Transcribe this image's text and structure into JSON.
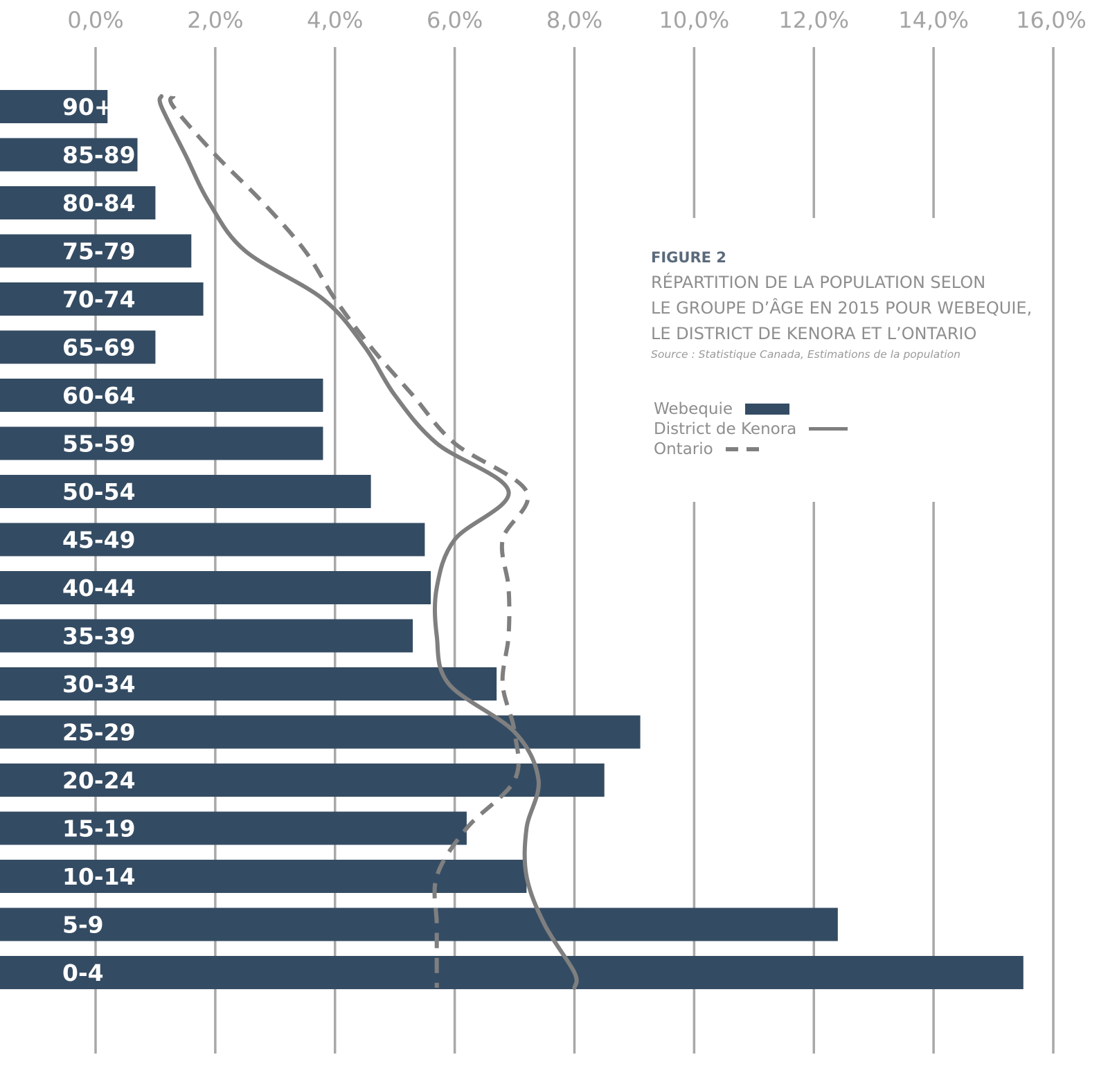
{
  "chart_data": {
    "type": "bar",
    "orientation": "horizontal",
    "figure_label": "FIGURE 2",
    "title": "RÉPARTITION DE LA POPULATION SELON LE GROUPE D’ÂGE EN 2015 POUR WEBEQUIE, LE DISTRICT DE KENORA ET L’ONTARIO",
    "title_lines": [
      "RÉPARTITION DE LA POPULATION SELON",
      "LE GROUPE D’ÂGE EN 2015 POUR WEBEQUIE,",
      "LE DISTRICT DE KENORA ET L’ONTARIO"
    ],
    "source": "Source : Statistique Canada, Estimations de la population",
    "xlim": [
      -1.6,
      16.0
    ],
    "x_ticks": [
      0,
      2,
      4,
      6,
      8,
      10,
      12,
      14,
      16
    ],
    "x_tick_labels": [
      "0,0%",
      "2,0%",
      "4,0%",
      "6,0%",
      "8,0%",
      "10,0%",
      "12,0%",
      "14,0%",
      "16,0%"
    ],
    "grid": "vertical",
    "legend_position": "right",
    "categories": [
      "90+",
      "85-89",
      "80-84",
      "75-79",
      "70-74",
      "65-69",
      "60-64",
      "55-59",
      "50-54",
      "45-49",
      "40-44",
      "35-39",
      "30-34",
      "25-29",
      "20-24",
      "15-19",
      "10-14",
      "5-9",
      "0-4"
    ],
    "series": [
      {
        "name": "Webequie",
        "style": "bar",
        "color": "#344c63",
        "values": [
          0.2,
          0.7,
          1.0,
          1.6,
          1.8,
          1.0,
          3.8,
          3.8,
          4.6,
          5.5,
          5.6,
          5.3,
          6.7,
          9.1,
          8.5,
          6.2,
          7.2,
          12.4,
          15.5
        ]
      },
      {
        "name": "District de Kenora",
        "style": "solid-line",
        "color": "#7f7f80",
        "values": [
          1.1,
          1.5,
          1.9,
          2.5,
          3.8,
          4.5,
          5.0,
          5.7,
          6.9,
          6.0,
          5.7,
          5.7,
          5.9,
          7.0,
          7.4,
          7.2,
          7.2,
          7.5,
          8.0
        ]
      },
      {
        "name": "Ontario",
        "style": "dashed-line",
        "color": "#7f7f80",
        "values": [
          1.3,
          2.0,
          2.8,
          3.5,
          4.0,
          4.6,
          5.3,
          6.0,
          7.2,
          6.8,
          6.9,
          6.9,
          6.8,
          7.0,
          7.0,
          6.2,
          5.7,
          5.7,
          5.7
        ]
      }
    ]
  }
}
